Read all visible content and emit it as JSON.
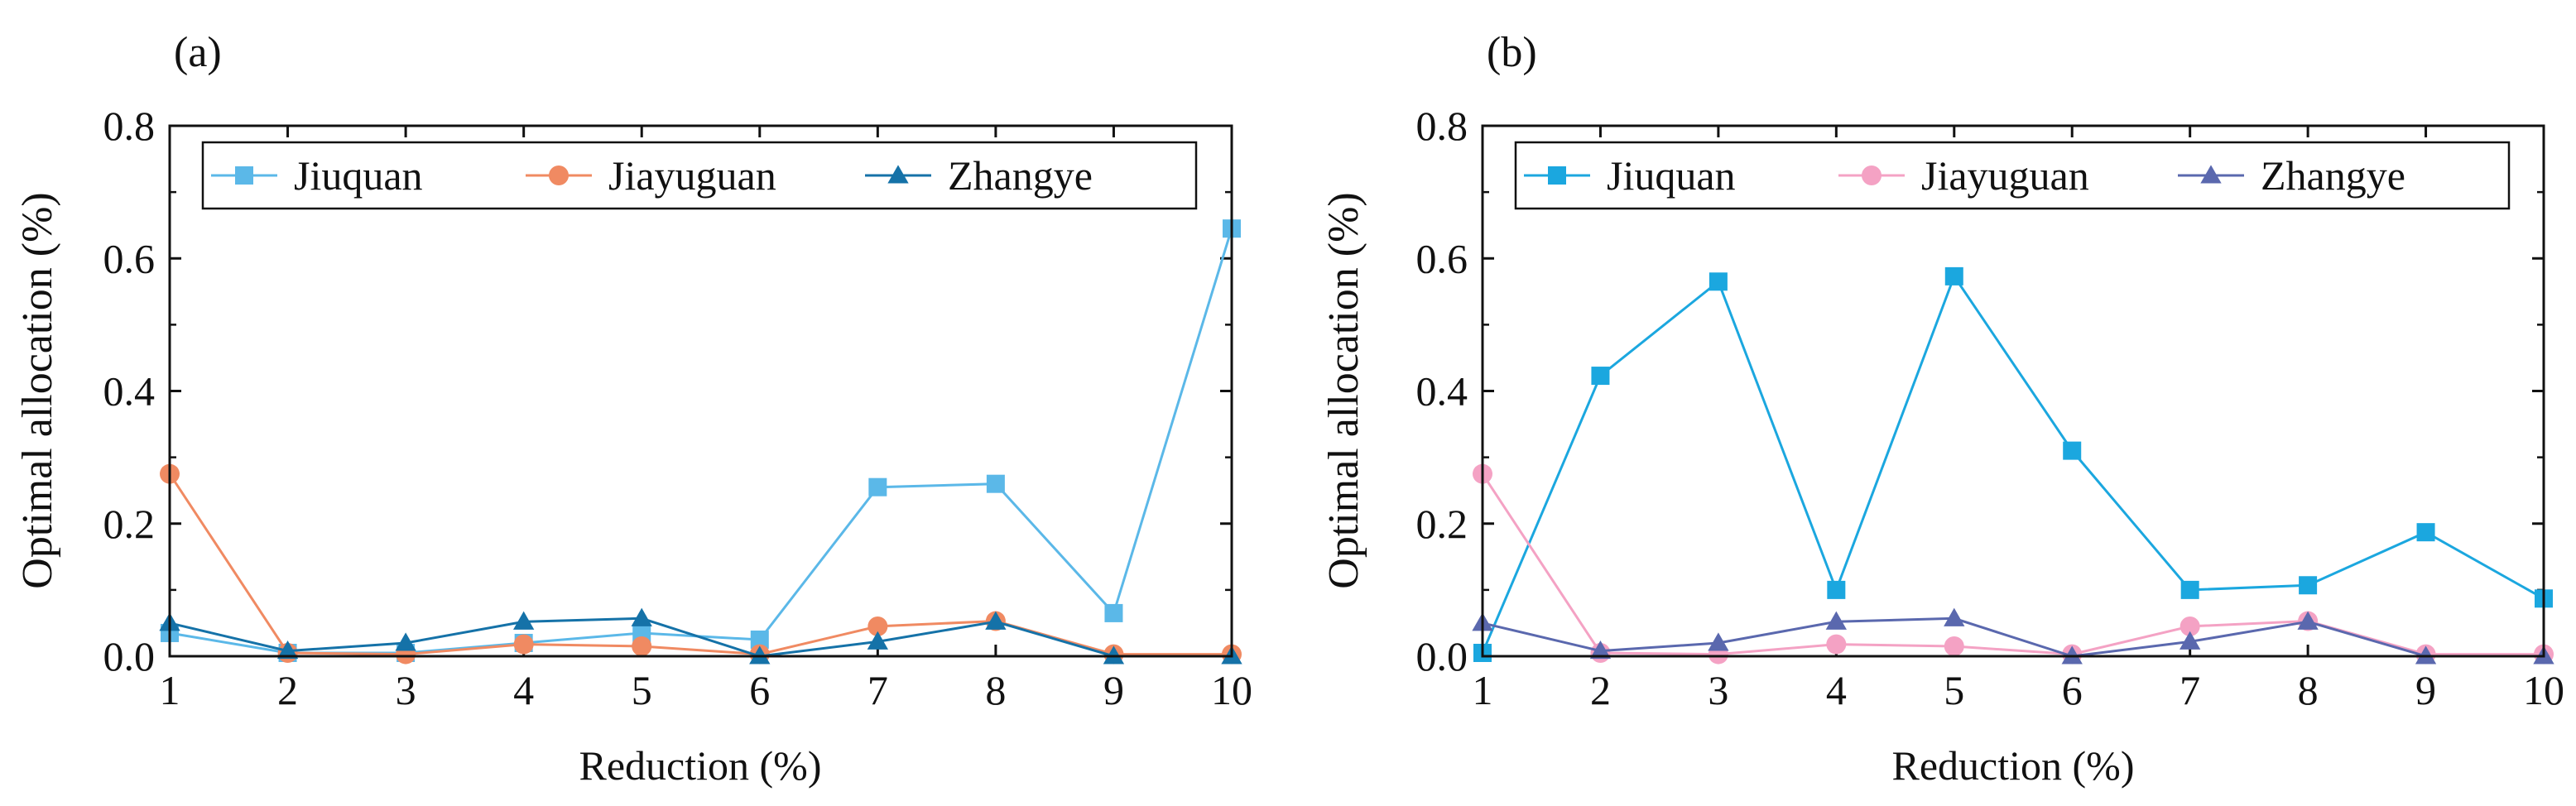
{
  "chart_data": [
    {
      "type": "line",
      "panel_label": "(a)",
      "xlabel": "Reduction (%)",
      "ylabel": "Optimal allocation (%)",
      "xlim": [
        1,
        10
      ],
      "ylim": [
        0,
        0.8
      ],
      "xticks": [
        "1",
        "2",
        "3",
        "4",
        "5",
        "6",
        "7",
        "8",
        "9",
        "10"
      ],
      "yticks": [
        "0.0",
        "0.2",
        "0.4",
        "0.6",
        "0.8"
      ],
      "x": [
        1,
        2,
        3,
        4,
        5,
        6,
        7,
        8,
        9,
        10
      ],
      "legend_position": "top",
      "series": [
        {
          "name": "Jiuquan",
          "marker": "square",
          "color": "#5BB8E8",
          "values": [
            0.035,
            0.005,
            0.005,
            0.02,
            0.035,
            0.025,
            0.255,
            0.26,
            0.065,
            0.645
          ]
        },
        {
          "name": "Jiayuguan",
          "marker": "circle",
          "color": "#F08A62",
          "values": [
            0.275,
            0.005,
            0.003,
            0.018,
            0.015,
            0.003,
            0.045,
            0.053,
            0.003,
            0.003
          ]
        },
        {
          "name": "Zhangye",
          "marker": "triangle",
          "color": "#1572A8",
          "values": [
            0.05,
            0.008,
            0.02,
            0.052,
            0.057,
            0.0,
            0.022,
            0.052,
            0.0,
            0.0
          ]
        }
      ]
    },
    {
      "type": "line",
      "panel_label": "(b)",
      "xlabel": "Reduction (%)",
      "ylabel": "Optimal allocation (%)",
      "xlim": [
        1,
        10
      ],
      "ylim": [
        0,
        0.8
      ],
      "xticks": [
        "1",
        "2",
        "3",
        "4",
        "5",
        "6",
        "7",
        "8",
        "9",
        "10"
      ],
      "yticks": [
        "0.0",
        "0.2",
        "0.4",
        "0.6",
        "0.8"
      ],
      "x": [
        1,
        2,
        3,
        4,
        5,
        6,
        7,
        8,
        9,
        10
      ],
      "legend_position": "top",
      "series": [
        {
          "name": "Jiuquan",
          "marker": "square",
          "color": "#1BA7DF",
          "values": [
            0.005,
            0.423,
            0.565,
            0.1,
            0.573,
            0.31,
            0.1,
            0.107,
            0.187,
            0.087
          ]
        },
        {
          "name": "Jiayuguan",
          "marker": "circle",
          "color": "#F4A2C4",
          "values": [
            0.275,
            0.005,
            0.003,
            0.018,
            0.015,
            0.003,
            0.045,
            0.053,
            0.003,
            0.003
          ]
        },
        {
          "name": "Zhangye",
          "marker": "triangle",
          "color": "#5A68AE",
          "values": [
            0.05,
            0.008,
            0.02,
            0.052,
            0.057,
            0.0,
            0.022,
            0.052,
            0.0,
            0.0
          ]
        }
      ]
    }
  ]
}
